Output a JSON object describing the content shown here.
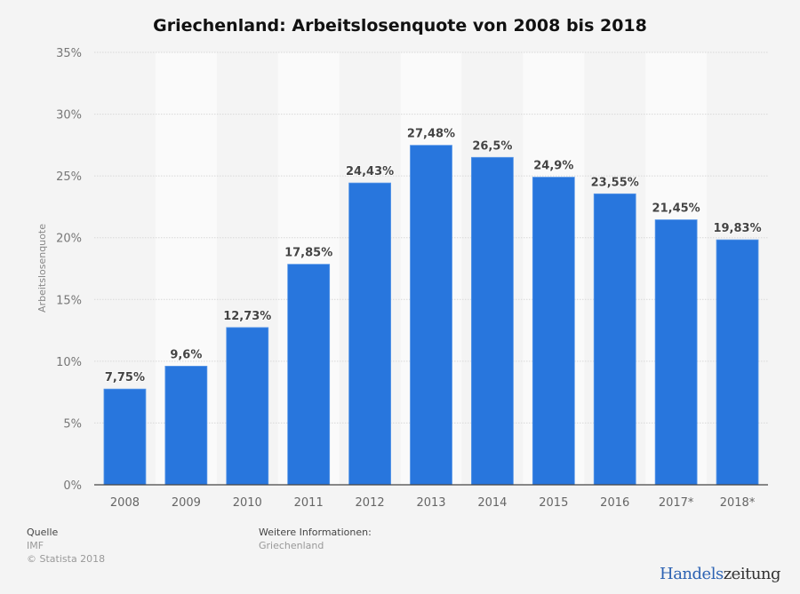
{
  "chart_data": {
    "type": "bar",
    "title": "Griechenland: Arbeitslosenquote von 2008 bis 2018",
    "xlabel": "",
    "ylabel": "Arbeitslosenquote",
    "categories": [
      "2008",
      "2009",
      "2010",
      "2011",
      "2012",
      "2013",
      "2014",
      "2015",
      "2016",
      "2017*",
      "2018*"
    ],
    "values": [
      7.75,
      9.6,
      12.73,
      17.85,
      24.43,
      27.48,
      26.5,
      24.9,
      23.55,
      21.45,
      19.83
    ],
    "value_labels": [
      "7,75%",
      "9,6%",
      "12,73%",
      "17,85%",
      "24,43%",
      "27,48%",
      "26,5%",
      "24,9%",
      "23,55%",
      "21,45%",
      "19,83%"
    ],
    "ylim": [
      0,
      35
    ],
    "yticks": [
      0,
      5,
      10,
      15,
      20,
      25,
      30,
      35
    ],
    "ytick_labels": [
      "0%",
      "5%",
      "10%",
      "15%",
      "20%",
      "25%",
      "30%",
      "35%"
    ],
    "grid": true,
    "legend": "none",
    "bar_color": "#2876dd"
  },
  "footer": {
    "source_heading": "Quelle",
    "source": "IMF",
    "copyright": "© Statista 2018",
    "info_heading": "Weitere Informationen:",
    "info": "Griechenland"
  },
  "logo": {
    "part1": "Handels",
    "part2": "zeitung"
  }
}
